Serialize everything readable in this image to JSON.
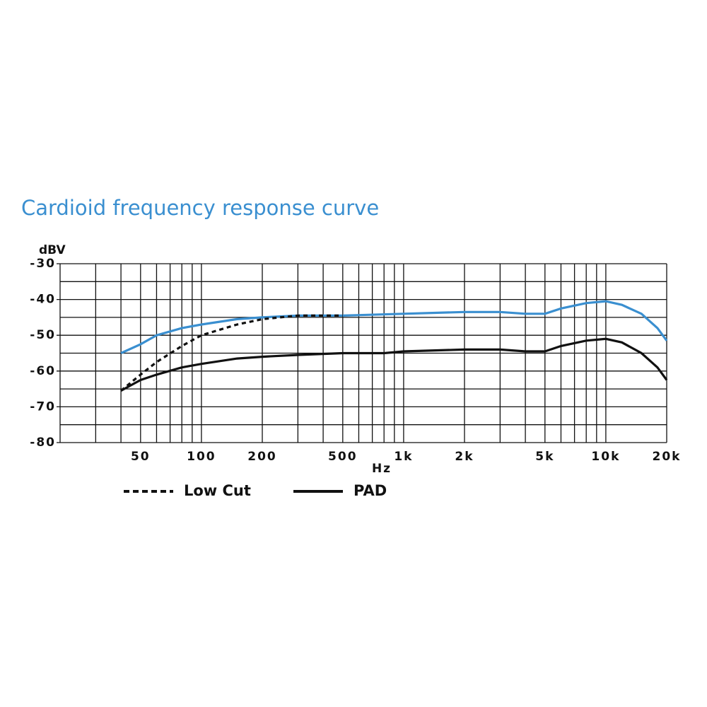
{
  "chart_data": {
    "type": "line",
    "title": "Cardioid frequency response curve",
    "ylabel": "dBV",
    "xlabel": "Hz",
    "xscale": "log",
    "xlim": [
      20,
      20000
    ],
    "ylim": [
      -80,
      -30
    ],
    "xticks": [
      50,
      100,
      200,
      500,
      {
        "value": 1000,
        "label": "1k"
      },
      {
        "value": 2000,
        "label": "2k"
      },
      {
        "value": 5000,
        "label": "5k"
      },
      {
        "value": 10000,
        "label": "10k"
      },
      {
        "value": 20000,
        "label": "20k"
      }
    ],
    "xminor": [
      20,
      30,
      40,
      60,
      70,
      80,
      90,
      300,
      400,
      600,
      700,
      800,
      900,
      3000,
      4000,
      6000,
      7000,
      8000,
      9000
    ],
    "yticks": [
      -30,
      -40,
      -50,
      -60,
      -70,
      -80
    ],
    "yminor": [
      -35,
      -45,
      -55,
      -65,
      -75
    ],
    "grid": true,
    "series": [
      {
        "color": "#3a8fd0",
        "style": "solid",
        "x": [
          40,
          50,
          60,
          80,
          100,
          150,
          200,
          300,
          500,
          1000,
          2000,
          3000,
          4000,
          5000,
          6000,
          8000,
          10000,
          12000,
          15000,
          18000,
          20000
        ],
        "values": [
          -55,
          -52.5,
          -50,
          -48,
          -47,
          -45.5,
          -45,
          -44.5,
          -44.5,
          -44,
          -43.5,
          -43.5,
          -44,
          -44,
          -42.5,
          -41,
          -40.5,
          -41.5,
          -44,
          -48,
          -51.5
        ]
      },
      {
        "name": "Low Cut",
        "color": "#111111",
        "style": "dashed",
        "x": [
          40,
          50,
          60,
          80,
          100,
          150,
          200,
          300,
          500
        ],
        "values": [
          -65.5,
          -61,
          -57.5,
          -53,
          -50,
          -47,
          -45.5,
          -44.5,
          -44.5
        ]
      },
      {
        "name": "PAD",
        "color": "#111111",
        "style": "solid",
        "x": [
          40,
          50,
          60,
          80,
          100,
          150,
          200,
          300,
          500,
          800,
          1000,
          2000,
          3000,
          4000,
          5000,
          6000,
          8000,
          10000,
          12000,
          15000,
          18000,
          20000
        ],
        "values": [
          -65.5,
          -62.5,
          -61,
          -59,
          -58,
          -56.5,
          -56,
          -55.5,
          -55,
          -55,
          -54.5,
          -54,
          -54,
          -54.5,
          -54.5,
          -53,
          -51.5,
          -51,
          -52,
          -55,
          -59,
          -62.5
        ]
      }
    ]
  }
}
